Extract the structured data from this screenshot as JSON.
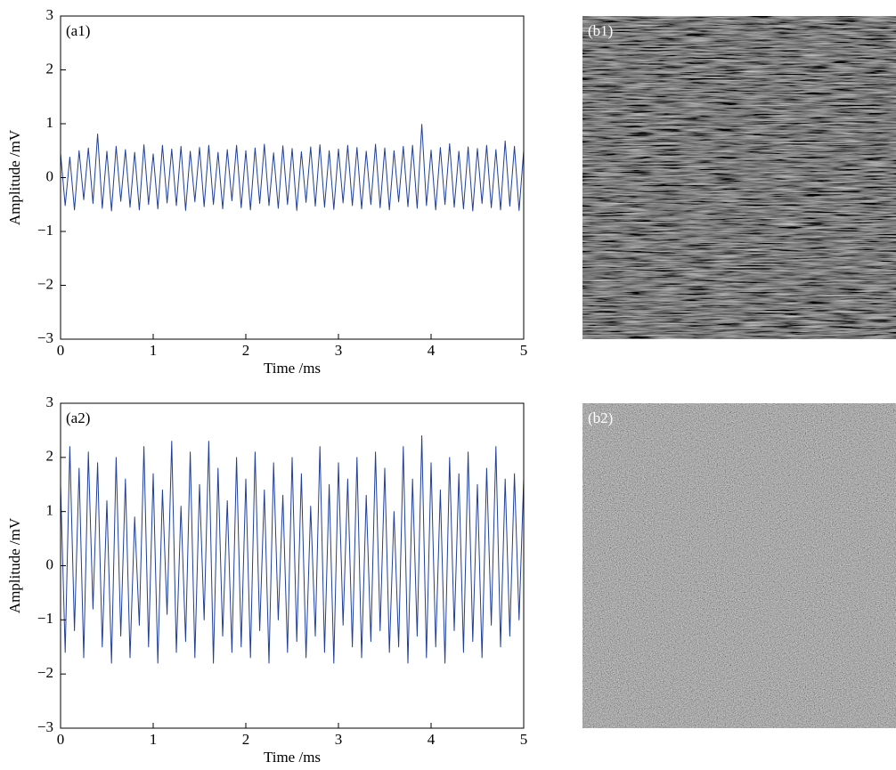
{
  "chart_data": [
    {
      "type": "line",
      "label": "(a1)",
      "xlabel": "Time /ms",
      "ylabel": "Amplitude /mV",
      "xlim": [
        0,
        5
      ],
      "ylim": [
        -3,
        3
      ],
      "xticks": [
        0,
        1,
        2,
        3,
        4,
        5
      ],
      "yticks": [
        {
          "value": -3,
          "label": "−3"
        },
        {
          "value": -2,
          "label": "−2"
        },
        {
          "value": -1,
          "label": "−1"
        },
        0,
        1,
        2,
        3
      ],
      "x": [
        0,
        0.05,
        0.1,
        0.15,
        0.2,
        0.25,
        0.3,
        0.35,
        0.4,
        0.45,
        0.5,
        0.55,
        0.6,
        0.65,
        0.7,
        0.75,
        0.8,
        0.85,
        0.9,
        0.95,
        1,
        1.05,
        1.1,
        1.15,
        1.2,
        1.25,
        1.3,
        1.35,
        1.4,
        1.45,
        1.5,
        1.55,
        1.6,
        1.65,
        1.7,
        1.75,
        1.8,
        1.85,
        1.9,
        1.95,
        2,
        2.05,
        2.1,
        2.15,
        2.2,
        2.25,
        2.3,
        2.35,
        2.4,
        2.45,
        2.5,
        2.55,
        2.6,
        2.65,
        2.7,
        2.75,
        2.8,
        2.85,
        2.9,
        2.95,
        3,
        3.05,
        3.1,
        3.15,
        3.2,
        3.25,
        3.3,
        3.35,
        3.4,
        3.45,
        3.5,
        3.55,
        3.6,
        3.65,
        3.7,
        3.75,
        3.8,
        3.85,
        3.9,
        3.95,
        4,
        4.05,
        4.1,
        4.15,
        4.2,
        4.25,
        4.3,
        4.35,
        4.4,
        4.45,
        4.5,
        4.55,
        4.6,
        4.65,
        4.7,
        4.75,
        4.8,
        4.85,
        4.9,
        4.95,
        5
      ],
      "series": [
        {
          "color": "#1f3f99",
          "values": [
            0.45,
            -0.52,
            0.38,
            -0.6,
            0.5,
            -0.41,
            0.55,
            -0.48,
            0.81,
            -0.57,
            0.49,
            -0.62,
            0.58,
            -0.44,
            0.52,
            -0.55,
            0.47,
            -0.6,
            0.61,
            -0.5,
            0.44,
            -0.58,
            0.6,
            -0.47,
            0.53,
            -0.52,
            0.58,
            -0.61,
            0.49,
            -0.45,
            0.56,
            -0.54,
            0.6,
            -0.5,
            0.47,
            -0.58,
            0.52,
            -0.43,
            0.6,
            -0.56,
            0.5,
            -0.6,
            0.55,
            -0.48,
            0.62,
            -0.52,
            0.46,
            -0.57,
            0.59,
            -0.5,
            0.54,
            -0.61,
            0.48,
            -0.46,
            0.57,
            -0.53,
            0.61,
            -0.55,
            0.5,
            -0.59,
            0.53,
            -0.47,
            0.6,
            -0.52,
            0.56,
            -0.58,
            0.49,
            -0.5,
            0.62,
            -0.56,
            0.55,
            -0.6,
            0.5,
            -0.45,
            0.58,
            -0.54,
            0.6,
            -0.57,
            0.99,
            -0.52,
            0.51,
            -0.6,
            0.56,
            -0.5,
            0.63,
            -0.55,
            0.49,
            -0.58,
            0.57,
            -0.62,
            0.54,
            -0.48,
            0.6,
            -0.56,
            0.52,
            -0.6,
            0.68,
            -0.53,
            0.58,
            -0.61,
            0.5
          ]
        }
      ]
    },
    {
      "type": "line",
      "label": "(a2)",
      "xlabel": "Time /ms",
      "ylabel": "Amplitude /mV",
      "xlim": [
        0,
        5
      ],
      "ylim": [
        -3,
        3
      ],
      "xticks": [
        0,
        1,
        2,
        3,
        4,
        5
      ],
      "yticks": [
        {
          "value": -3,
          "label": "−3"
        },
        {
          "value": -2,
          "label": "−2"
        },
        {
          "value": -1,
          "label": "−1"
        },
        0,
        1,
        2,
        3
      ],
      "x": [
        0,
        0.05,
        0.1,
        0.15,
        0.2,
        0.25,
        0.3,
        0.35,
        0.4,
        0.45,
        0.5,
        0.55,
        0.6,
        0.65,
        0.7,
        0.75,
        0.8,
        0.85,
        0.9,
        0.95,
        1,
        1.05,
        1.1,
        1.15,
        1.2,
        1.25,
        1.3,
        1.35,
        1.4,
        1.45,
        1.5,
        1.55,
        1.6,
        1.65,
        1.7,
        1.75,
        1.8,
        1.85,
        1.9,
        1.95,
        2,
        2.05,
        2.1,
        2.15,
        2.2,
        2.25,
        2.3,
        2.35,
        2.4,
        2.45,
        2.5,
        2.55,
        2.6,
        2.65,
        2.7,
        2.75,
        2.8,
        2.85,
        2.9,
        2.95,
        3,
        3.05,
        3.1,
        3.15,
        3.2,
        3.25,
        3.3,
        3.35,
        3.4,
        3.45,
        3.5,
        3.55,
        3.6,
        3.65,
        3.7,
        3.75,
        3.8,
        3.85,
        3.9,
        3.95,
        4,
        4.05,
        4.1,
        4.15,
        4.2,
        4.25,
        4.3,
        4.35,
        4.4,
        4.45,
        4.5,
        4.55,
        4.6,
        4.65,
        4.7,
        4.75,
        4.8,
        4.85,
        4.9,
        4.95,
        5
      ],
      "series": [
        {
          "color": "#1f3f99",
          "values": [
            1.5,
            -1.6,
            2.2,
            -1.2,
            1.8,
            -1.7,
            2.1,
            -0.8,
            1.9,
            -1.5,
            1.2,
            -1.8,
            2.0,
            -1.3,
            1.6,
            -1.7,
            0.9,
            -1.1,
            2.2,
            -1.5,
            1.7,
            -1.8,
            1.4,
            -0.9,
            2.3,
            -1.6,
            1.1,
            -1.4,
            2.1,
            -1.7,
            1.5,
            -1.0,
            2.3,
            -1.8,
            1.8,
            -1.3,
            1.2,
            -1.6,
            2.0,
            -1.5,
            1.6,
            -1.7,
            2.1,
            -1.2,
            1.4,
            -1.8,
            1.9,
            -1.0,
            1.3,
            -1.6,
            2.0,
            -1.4,
            1.7,
            -1.7,
            1.1,
            -1.3,
            2.2,
            -1.6,
            1.5,
            -1.8,
            1.9,
            -1.1,
            1.6,
            -1.5,
            2.0,
            -1.7,
            1.3,
            -1.4,
            2.1,
            -1.2,
            1.8,
            -1.6,
            1.0,
            -1.5,
            2.2,
            -1.8,
            1.6,
            -1.3,
            2.4,
            -1.7,
            1.9,
            -1.5,
            1.4,
            -1.8,
            2.0,
            -1.2,
            1.7,
            -1.6,
            2.1,
            -1.4,
            1.5,
            -1.7,
            1.8,
            -1.1,
            2.2,
            -1.5,
            1.6,
            -1.3,
            1.7,
            -1.0,
            1.6
          ]
        }
      ]
    }
  ],
  "images": [
    {
      "label": "(b1)"
    },
    {
      "label": "(b2)"
    }
  ]
}
